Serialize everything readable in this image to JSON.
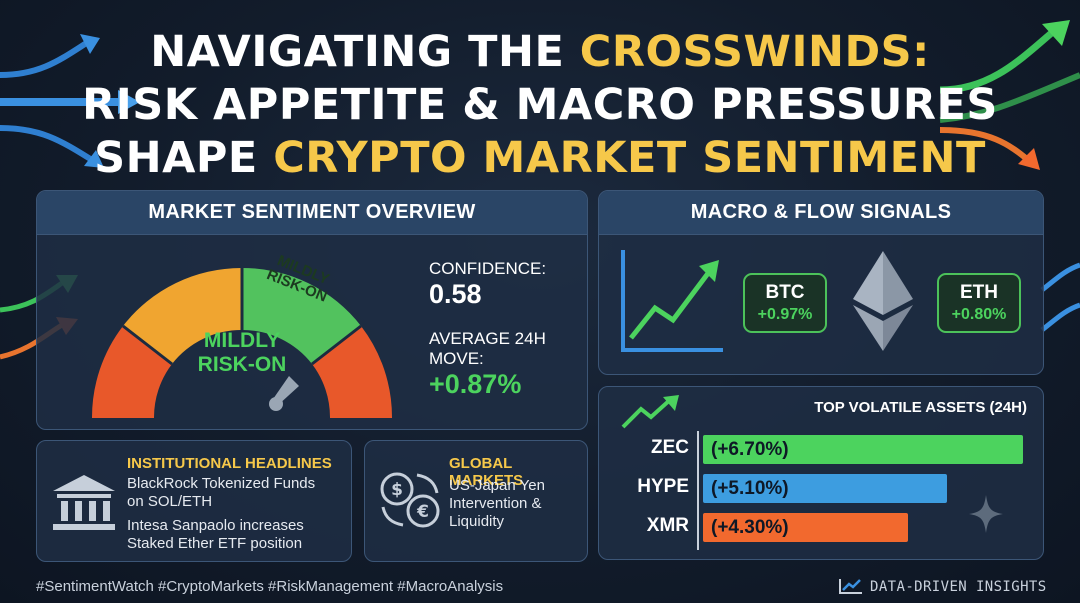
{
  "title": {
    "line1_a": "NAVIGATING THE ",
    "line1_b": "CROSSWINDS:",
    "line2": "RISK APPETITE & MACRO PRESSURES",
    "line3_a": "SHAPE ",
    "line3_b": "CRYPTO MARKET SENTIMENT"
  },
  "sentiment": {
    "header": "MARKET SENTIMENT OVERVIEW",
    "gauge_segment_label": "MILDLY RISK-ON",
    "gauge_center_line1": "MILDLY",
    "gauge_center_line2": "RISK-ON",
    "confidence_label": "CONFIDENCE:",
    "confidence_value": "0.58",
    "avg_move_label_line1": "AVERAGE 24H",
    "avg_move_label_line2": "MOVE:",
    "avg_move_value": "+0.87%"
  },
  "macro": {
    "header": "MACRO & FLOW SIGNALS",
    "btc": {
      "symbol": "BTC",
      "change": "+0.97%"
    },
    "eth": {
      "symbol": "ETH",
      "change": "+0.80%"
    }
  },
  "volatile": {
    "header": "TOP VOLATILE ASSETS (24h)",
    "assets": [
      {
        "name": "ZEC",
        "label": "(+6.70%)",
        "value": 6.7,
        "color": "#4cd35e"
      },
      {
        "name": "HYPE",
        "label": "(+5.10%)",
        "value": 5.1,
        "color": "#3d9de0"
      },
      {
        "name": "XMR",
        "label": "(+4.30%)",
        "value": 4.3,
        "color": "#f2692e"
      }
    ]
  },
  "institutional": {
    "header": "INSTITUTIONAL HEADLINES",
    "item1_line1": "BlackRock Tokenized Funds",
    "item1_line2": "on SOL/ETH",
    "item2_line1": "Intesa Sanpaolo increases",
    "item2_line2": "Staked Ether ETF position"
  },
  "global": {
    "header": "GLOBAL MARKETS",
    "line1": "US-Japan Yen",
    "line2": "Intervention &",
    "line3": "Liquidity"
  },
  "footer": {
    "hashtags": "#SentimentWatch #CryptoMarkets #RiskManagement #MacroAnalysis",
    "brand": "DATA-DRIVEN INSIGHTS"
  }
}
